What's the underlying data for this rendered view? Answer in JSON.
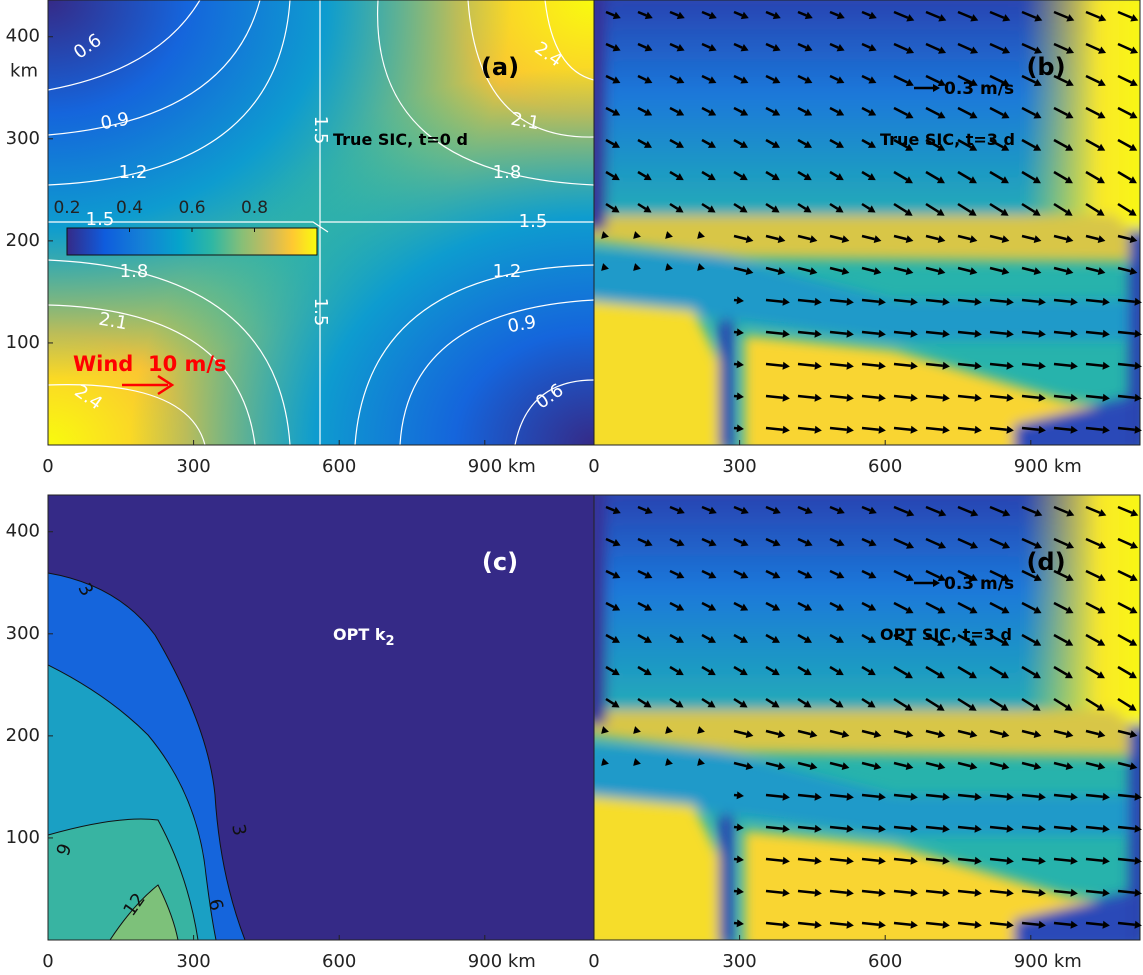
{
  "chart_data": [
    {
      "type": "contour",
      "panel": "(a)",
      "annotation": "True SIC, t=0 d",
      "wind_label": "Wind  10 m/s",
      "xlim": [
        0,
        1125
      ],
      "xticks": [
        0,
        300,
        600,
        {
          "value": 900,
          "label": "900 km"
        }
      ],
      "ylim": [
        0,
        436
      ],
      "yticks": [
        100,
        200,
        300,
        400
      ],
      "ylabel": "km",
      "contour_labels": [
        0.6,
        0.9,
        1.2,
        1.5,
        1.8,
        2.1,
        2.4
      ],
      "colorbar": {
        "lim": [
          0.2,
          1.0
        ],
        "ticks": [
          0.2,
          0.4,
          0.6,
          0.8
        ]
      }
    },
    {
      "type": "quiver",
      "panel": "(b)",
      "annotation": "True SIC, t=3 d",
      "reference_arrow_label": "0.3 m/s",
      "xlim": [
        0,
        1125
      ],
      "xticks": [
        0,
        300,
        600,
        {
          "value": 900,
          "label": "900 km"
        }
      ],
      "ylim": [
        0,
        436
      ]
    },
    {
      "type": "contourf",
      "panel": "(c)",
      "annotation": "OPT k",
      "annotation_subscript": "2",
      "xlim": [
        0,
        1125
      ],
      "xticks": [
        0,
        300,
        600,
        {
          "value": 900,
          "label": "900 km"
        }
      ],
      "ylim": [
        0,
        436
      ],
      "yticks": [
        100,
        200,
        300,
        400
      ],
      "contour_labels": [
        3,
        6,
        9,
        12
      ]
    },
    {
      "type": "quiver",
      "panel": "(d)",
      "annotation": "OPT SIC, t=3 d",
      "reference_arrow_label": "0.3 m/s",
      "xlim": [
        0,
        1125
      ],
      "xticks": [
        0,
        300,
        600,
        {
          "value": 900,
          "label": "900 km"
        }
      ],
      "ylim": [
        0,
        436
      ]
    }
  ]
}
